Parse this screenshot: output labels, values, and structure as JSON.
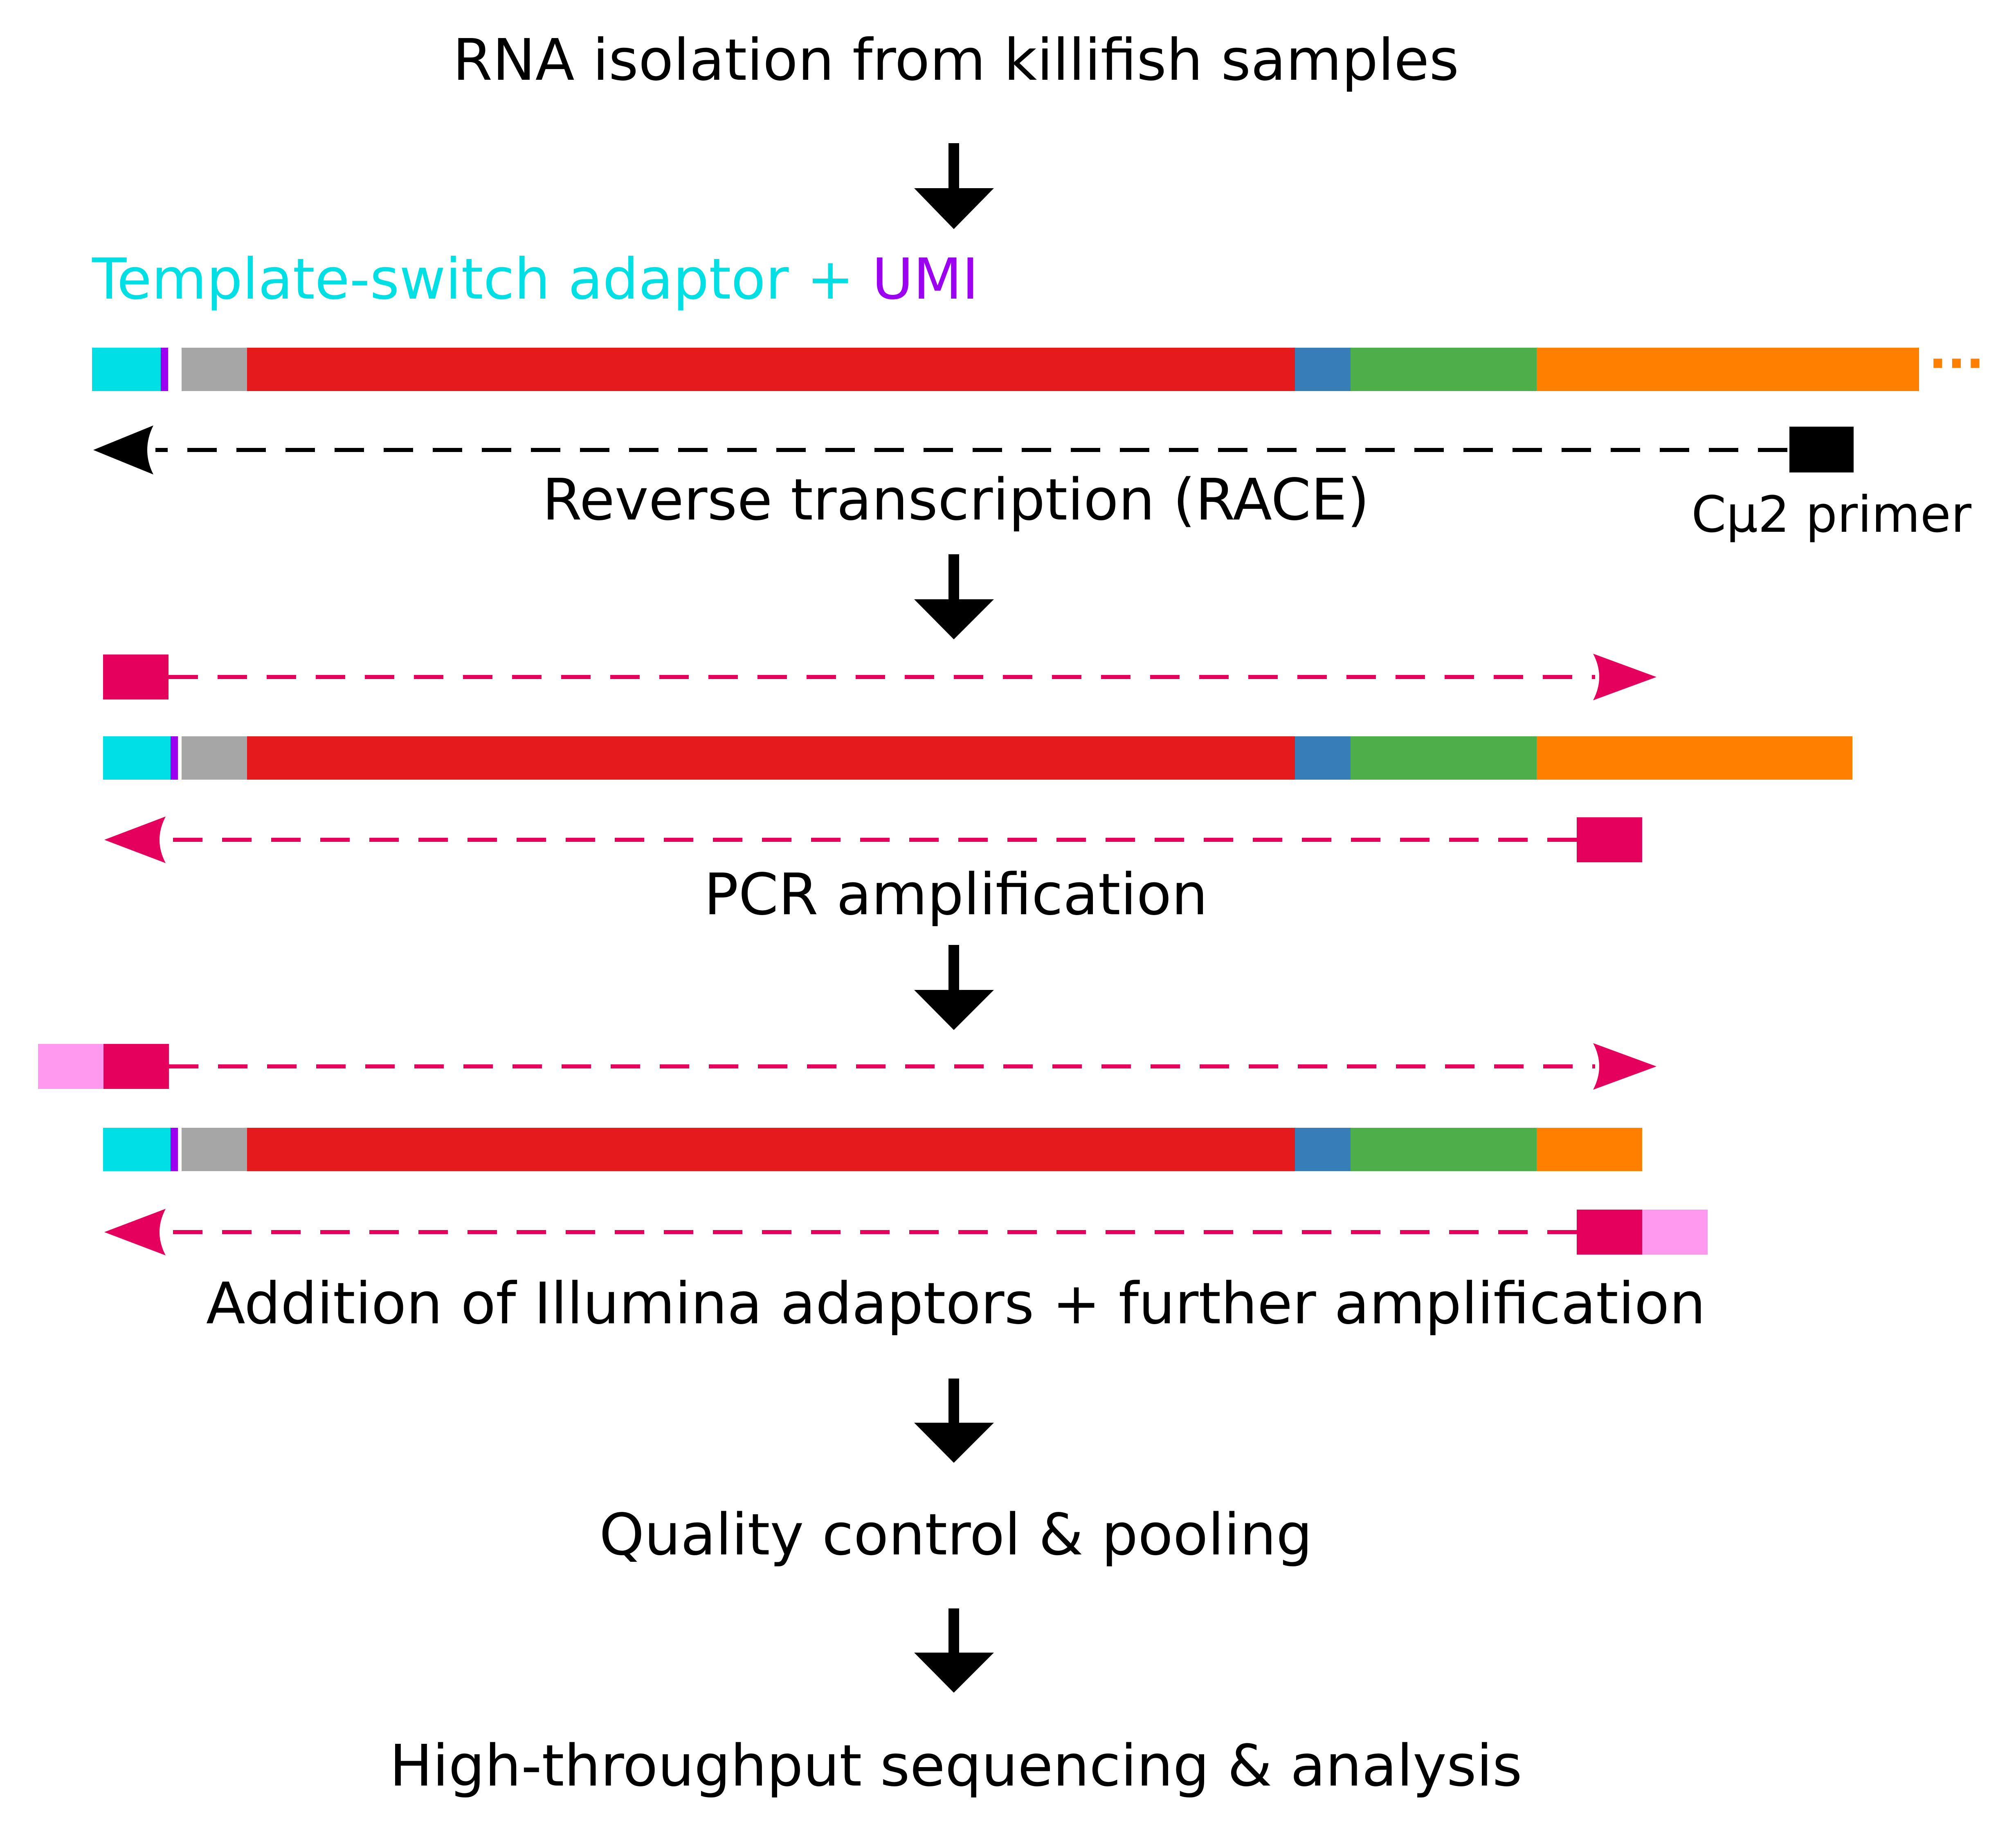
{
  "steps": {
    "rna_isolation": "RNA isolation from killifish samples",
    "reverse_transcription": "Reverse transcription (RACE)",
    "pcr_amplification": "PCR amplification",
    "illumina_addition": "Addition of Illumina adaptors + further amplification",
    "quality_control": "Quality control & pooling",
    "sequencing": "High-throughput sequencing & analysis"
  },
  "labels": {
    "template_switch": "Template-switch adaptor",
    "plus": " + ",
    "umi": "UMI",
    "cmu2_primer": "Cμ2 primer",
    "ellipsis": "···"
  },
  "colors": {
    "template_switch": "#00dfe3",
    "umi": "#9b00f0",
    "grey": "#a6a6a6",
    "red": "#e41a1c",
    "blue": "#377eb8",
    "green": "#4daf4a",
    "orange": "#ff7f00",
    "primer": "#e6005e",
    "illumina": "#ff99f0",
    "black": "#000000"
  }
}
